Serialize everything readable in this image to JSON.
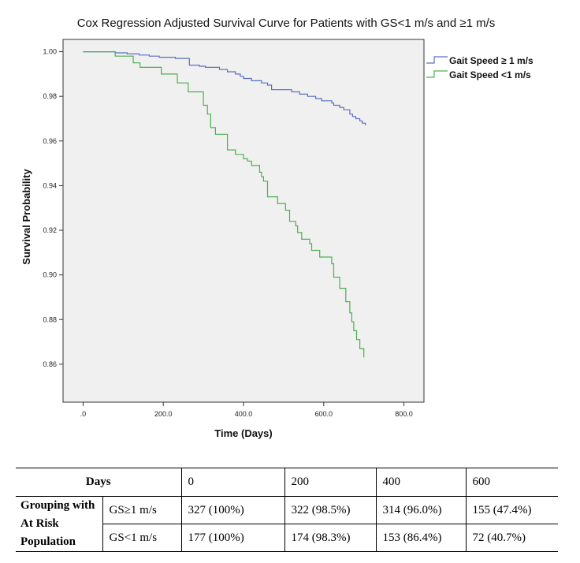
{
  "chart_data": {
    "type": "line",
    "step": true,
    "title": "Cox Regression Adjusted Survival Curve for Patients with GS<1 m/s and ≥1 m/s",
    "xlabel": "Time (Days)",
    "ylabel": "Survival Probability",
    "xlim": [
      -50,
      850
    ],
    "ylim": [
      0.843,
      1.0055
    ],
    "xticks": [
      0,
      200,
      400,
      600,
      800
    ],
    "xtick_labels": [
      ".0",
      "200.0",
      "400.0",
      "600.0",
      "800.0"
    ],
    "yticks": [
      0.86,
      0.88,
      0.9,
      0.92,
      0.94,
      0.96,
      0.98,
      1.0
    ],
    "ytick_labels": [
      "0.86",
      "0.88",
      "0.90",
      "0.92",
      "0.94",
      "0.96",
      "0.98",
      "1.00"
    ],
    "legend_position": "top-right",
    "series": [
      {
        "name": "Gait Speed ≥ 1 m/s",
        "color": "#5b6ec0",
        "x": [
          0,
          80,
          110,
          140,
          165,
          190,
          230,
          265,
          290,
          305,
          340,
          360,
          380,
          392,
          400,
          420,
          445,
          460,
          470,
          520,
          540,
          560,
          580,
          595,
          620,
          625,
          640,
          650,
          665,
          672,
          680,
          690,
          696,
          704
        ],
        "y": [
          1.0,
          0.9995,
          0.999,
          0.9985,
          0.998,
          0.9975,
          0.997,
          0.994,
          0.9935,
          0.993,
          0.992,
          0.991,
          0.99,
          0.989,
          0.988,
          0.987,
          0.986,
          0.985,
          0.983,
          0.982,
          0.981,
          0.98,
          0.979,
          0.978,
          0.977,
          0.976,
          0.975,
          0.974,
          0.972,
          0.971,
          0.97,
          0.969,
          0.968,
          0.967
        ]
      },
      {
        "name": "Gait Speed <1 m/s",
        "color": "#4cb04c",
        "x": [
          0,
          80,
          125,
          142,
          195,
          235,
          262,
          300,
          310,
          318,
          330,
          360,
          380,
          400,
          410,
          420,
          440,
          445,
          450,
          460,
          485,
          505,
          515,
          530,
          535,
          545,
          565,
          570,
          590,
          620,
          625,
          640,
          655,
          665,
          670,
          675,
          682,
          690,
          700
        ],
        "y": [
          1.0,
          0.998,
          0.995,
          0.993,
          0.99,
          0.986,
          0.982,
          0.976,
          0.972,
          0.966,
          0.963,
          0.956,
          0.954,
          0.952,
          0.951,
          0.949,
          0.946,
          0.944,
          0.942,
          0.935,
          0.932,
          0.929,
          0.924,
          0.922,
          0.919,
          0.916,
          0.914,
          0.911,
          0.908,
          0.905,
          0.899,
          0.894,
          0.888,
          0.883,
          0.879,
          0.875,
          0.871,
          0.867,
          0.863
        ]
      }
    ]
  },
  "risk_table": {
    "header_label": "Days",
    "days": [
      "0",
      "200",
      "400",
      "600"
    ],
    "group_label": "Grouping with At Risk Population",
    "rows": [
      {
        "label": "GS≥1 m/s",
        "values": [
          "327 (100%)",
          "322 (98.5%)",
          "314 (96.0%)",
          "155 (47.4%)"
        ]
      },
      {
        "label": "GS<1 m/s",
        "values": [
          "177 (100%)",
          "174 (98.3%)",
          "153 (86.4%)",
          "72 (40.7%)"
        ]
      }
    ]
  }
}
